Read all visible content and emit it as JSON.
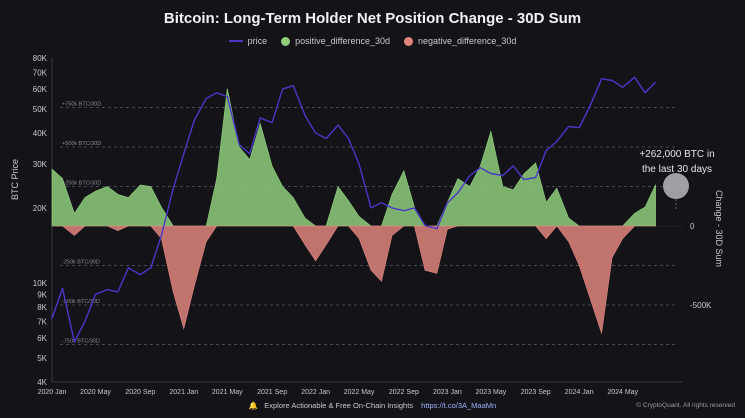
{
  "title": "Bitcoin: Long-Term Holder Net Position Change - 30D Sum",
  "legend": {
    "price": "price",
    "positive": "positive_difference_30d",
    "negative": "negative_difference_30d"
  },
  "annotation": {
    "line1": "+262,000 BTC in",
    "line2": "the last 30 days"
  },
  "footer": {
    "text": "Explore Actionable & Free On-Chain Insights",
    "link": "https://t.co/3A_MaaMn",
    "credit": "© CryptoQuant. All rights reserved"
  },
  "colors": {
    "background": "#131318",
    "price": "#4a37c8",
    "positive": "#8fcf7c",
    "negative": "#e0857c",
    "grid": "#5a5a64",
    "annotation_marker": "#b9b9bd"
  },
  "chart_data": {
    "type": "area",
    "title": "Bitcoin: Long-Term Holder Net Position Change - 30D Sum",
    "y_left_label": "BTC Price",
    "y_right_label": "Change - 30D Sum",
    "y_left_scale": "log",
    "y_left_ticks": [
      "80K",
      "70K",
      "60K",
      "50K",
      "40K",
      "30K",
      "20K",
      "10K",
      "9K",
      "8K",
      "7K",
      "6K",
      "5K",
      "4K"
    ],
    "y_left_tick_values": [
      80000,
      70000,
      60000,
      50000,
      40000,
      30000,
      20000,
      10000,
      9000,
      8000,
      7000,
      6000,
      5000,
      4000
    ],
    "y_right_ticks": [
      "0",
      "-500K"
    ],
    "y_right_tick_values": [
      0,
      -500000
    ],
    "x_ticks": [
      "2020 Jan",
      "2020 May",
      "2020 Sep",
      "2021 Jan",
      "2021 May",
      "2021 Sep",
      "2022 Jan",
      "2022 May",
      "2022 Sep",
      "2023 Jan",
      "2023 May",
      "2023 Sep",
      "2024 Jan",
      "2024 May"
    ],
    "reference_lines": [
      {
        "label": "+750k BTC/30D",
        "value": 750000
      },
      {
        "label": "+500k BTC/30D",
        "value": 500000
      },
      {
        "label": "+250k BTC/30D",
        "value": 250000
      },
      {
        "label": "-250k BTC/30D",
        "value": -250000
      },
      {
        "label": "-500k BTC/30D",
        "value": -500000
      },
      {
        "label": "-750k BTC/30D",
        "value": -750000
      }
    ],
    "x": [
      2020.0,
      2020.08,
      2020.17,
      2020.25,
      2020.33,
      2020.42,
      2020.5,
      2020.58,
      2020.67,
      2020.75,
      2020.83,
      2020.92,
      2021.0,
      2021.08,
      2021.17,
      2021.25,
      2021.33,
      2021.42,
      2021.5,
      2021.58,
      2021.67,
      2021.75,
      2021.83,
      2021.92,
      2022.0,
      2022.08,
      2022.17,
      2022.25,
      2022.33,
      2022.42,
      2022.5,
      2022.58,
      2022.67,
      2022.75,
      2022.83,
      2022.92,
      2023.0,
      2023.08,
      2023.17,
      2023.25,
      2023.33,
      2023.42,
      2023.5,
      2023.58,
      2023.67,
      2023.75,
      2023.83,
      2023.92,
      2024.0,
      2024.08,
      2024.17,
      2024.25,
      2024.33,
      2024.42,
      2024.5,
      2024.58
    ],
    "series": [
      {
        "name": "price",
        "values": [
          7200,
          9500,
          5800,
          7000,
          9000,
          9400,
          9200,
          11500,
          10800,
          11500,
          15500,
          24000,
          33000,
          45000,
          55000,
          58000,
          56000,
          36000,
          33000,
          46000,
          44000,
          60000,
          62000,
          47000,
          40000,
          38000,
          43000,
          38000,
          30000,
          20000,
          21000,
          20000,
          19500,
          20000,
          17000,
          16500,
          21000,
          23000,
          27000,
          29000,
          27500,
          27000,
          29500,
          26000,
          26500,
          34000,
          37000,
          42500,
          42000,
          51000,
          66000,
          65000,
          61000,
          67000,
          58000,
          64000
        ]
      },
      {
        "name": "positive_difference_30d",
        "values": [
          360000,
          300000,
          80000,
          180000,
          220000,
          250000,
          200000,
          180000,
          260000,
          250000,
          120000,
          0,
          0,
          0,
          0,
          300000,
          870000,
          500000,
          420000,
          650000,
          380000,
          250000,
          180000,
          50000,
          0,
          0,
          250000,
          160000,
          60000,
          0,
          0,
          200000,
          350000,
          120000,
          0,
          0,
          150000,
          300000,
          250000,
          380000,
          600000,
          250000,
          230000,
          330000,
          400000,
          150000,
          240000,
          50000,
          0,
          0,
          0,
          0,
          0,
          80000,
          120000,
          262000
        ]
      },
      {
        "name": "negative_difference_30d",
        "values": [
          0,
          0,
          -60000,
          0,
          0,
          0,
          -30000,
          0,
          0,
          0,
          -80000,
          -420000,
          -650000,
          -380000,
          -100000,
          0,
          0,
          0,
          0,
          0,
          0,
          0,
          0,
          -120000,
          -220000,
          -120000,
          0,
          0,
          -80000,
          -280000,
          -350000,
          -60000,
          0,
          0,
          -280000,
          -300000,
          -20000,
          0,
          0,
          0,
          0,
          0,
          0,
          0,
          0,
          -80000,
          0,
          -100000,
          -250000,
          -450000,
          -680000,
          -200000,
          -80000,
          0,
          0,
          0
        ]
      }
    ],
    "grid": false,
    "legend_position": "top-center"
  }
}
